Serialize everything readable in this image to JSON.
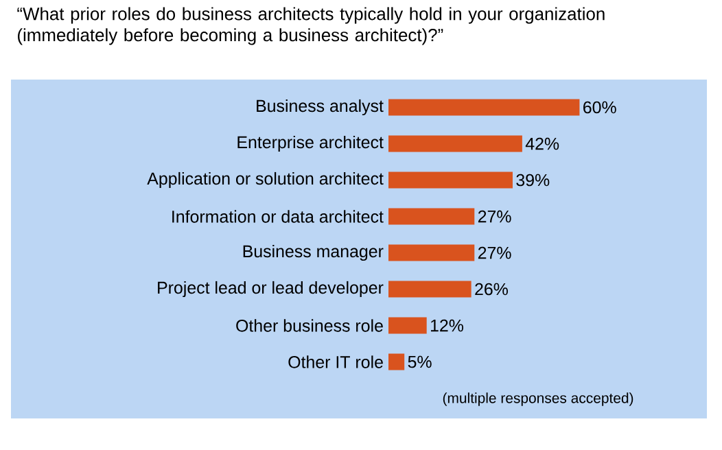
{
  "chart_data": {
    "type": "bar",
    "orientation": "horizontal",
    "title": "“What prior roles do business architects typically hold in your organization (immediately before becoming a business architect)?”",
    "categories": [
      "Business analyst",
      "Enterprise architect",
      "Application or solution architect",
      "Information or data architect",
      "Business manager",
      "Project lead or lead developer",
      "Other business role",
      "Other IT role"
    ],
    "values": [
      60,
      42,
      39,
      27,
      27,
      26,
      12,
      5
    ],
    "value_labels": [
      "60%",
      "42%",
      "39%",
      "27%",
      "27%",
      "26%",
      "12%",
      "5%"
    ],
    "color": "#d9531e",
    "xlim": [
      0,
      100
    ],
    "tick_labels": "y",
    "annotations": [
      "(multiple responses accepted)"
    ]
  }
}
